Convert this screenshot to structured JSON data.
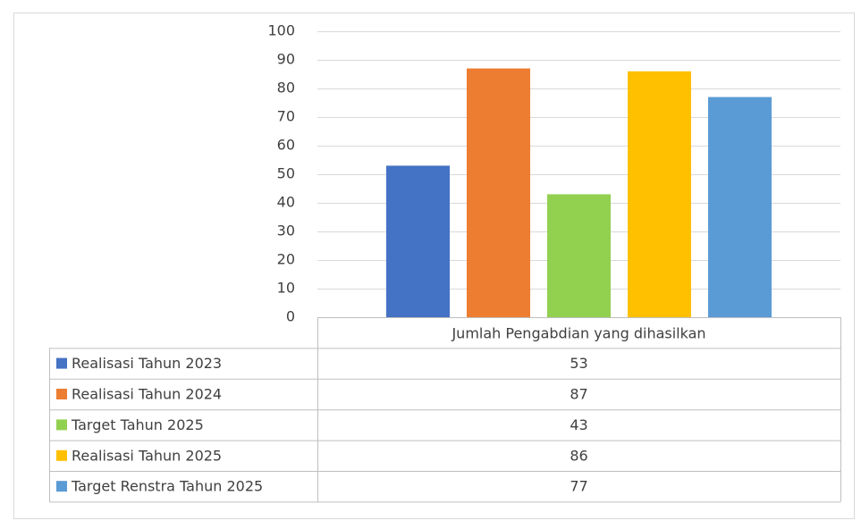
{
  "chart_data": {
    "type": "bar",
    "categories": [
      "Jumlah Pengabdian yang dihasilkan"
    ],
    "series": [
      {
        "name": "Realisasi Tahun 2023",
        "color": "#4472c4",
        "values": [
          53
        ]
      },
      {
        "name": "Realisasi Tahun 2024",
        "color": "#ed7d31",
        "values": [
          87
        ]
      },
      {
        "name": "Target Tahun 2025",
        "color": "#92d050",
        "values": [
          43
        ]
      },
      {
        "name": "Realisasi Tahun 2025",
        "color": "#ffc000",
        "values": [
          86
        ]
      },
      {
        "name": "Target Renstra Tahun 2025",
        "color": "#5b9bd5",
        "values": [
          77
        ]
      }
    ],
    "ylim": [
      0,
      100
    ],
    "yticks": [
      0,
      10,
      20,
      30,
      40,
      50,
      60,
      70,
      80,
      90,
      100
    ],
    "grid": true,
    "data_table": true
  }
}
